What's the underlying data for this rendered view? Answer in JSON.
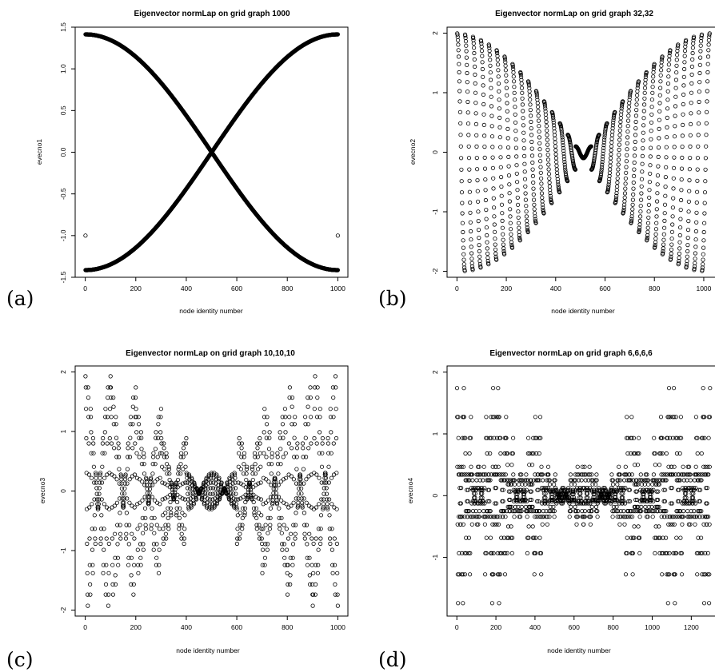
{
  "panel_labels": [
    "(a)",
    "(b)",
    "(c)",
    "(d)"
  ],
  "chart_data": [
    {
      "type": "scatter",
      "title": "Eigenvector normLap on grid graph 1000",
      "xlabel": "node identity number",
      "ylabel": "evecno1",
      "xlim": [
        -40,
        1040
      ],
      "ylim": [
        -1.5,
        1.5
      ],
      "xticks": [
        "0",
        "200",
        "400",
        "600",
        "800",
        "1000"
      ],
      "xtick_values": [
        0,
        200,
        400,
        600,
        800,
        1000
      ],
      "yticks": [
        "-1.5",
        "-1.0",
        "-0.5",
        "0.0",
        "0.5",
        "1.0",
        "1.5"
      ],
      "ytick_values": [
        -1.5,
        -1.0,
        -0.5,
        0.0,
        0.5,
        1.0,
        1.5
      ],
      "series": [
        {
          "x_range": [
            1,
            1000
          ],
          "step": 1,
          "formula": "1.414*cos(pi*(i-0.5)/1000)"
        },
        {
          "x_range": [
            1,
            1000
          ],
          "step": 1,
          "formula": "-1.414*cos(pi*(i-0.5)/1000)"
        },
        {
          "x": [
            1,
            1000
          ],
          "y": [
            -1.0,
            -1.0
          ]
        }
      ]
    },
    {
      "type": "scatter",
      "title": "Eigenvector normLap  on grid graph 32,32",
      "xlabel": "node identity number",
      "ylabel": "evecno2",
      "xlim": [
        -40,
        1065
      ],
      "ylim": [
        -2.1,
        2.1
      ],
      "xticks": [
        "0",
        "200",
        "400",
        "600",
        "800",
        "1000"
      ],
      "xtick_values": [
        0,
        200,
        400,
        600,
        800,
        1000
      ],
      "yticks": [
        "-2",
        "-1",
        "0",
        "1",
        "2"
      ],
      "ytick_values": [
        -2,
        -1,
        0,
        1,
        2
      ],
      "structure": {
        "n": 1024,
        "grid": [
          32,
          32
        ],
        "amplitude": 2.0
      }
    },
    {
      "type": "scatter",
      "title": "Eigenvector normLap  on grid graph 10,10,10",
      "xlabel": "node identity number",
      "ylabel": "evecno3",
      "xlim": [
        -40,
        1040
      ],
      "ylim": [
        -2.1,
        2.1
      ],
      "xticks": [
        "0",
        "200",
        "400",
        "600",
        "800",
        "1000"
      ],
      "xtick_values": [
        0,
        200,
        400,
        600,
        800,
        1000
      ],
      "yticks": [
        "-2",
        "-1",
        "0",
        "1",
        "2"
      ],
      "ytick_values": [
        -2,
        -1,
        0,
        1,
        2
      ],
      "structure": {
        "n": 1000,
        "grid": [
          10,
          10,
          10
        ],
        "levels": [
          1.88,
          1.6,
          1.34,
          1.08,
          0.82,
          0.58,
          0.34,
          0.2,
          0.05,
          -0.05,
          -0.2,
          -0.34,
          -0.58,
          -0.82,
          -1.08,
          -1.34,
          -1.6,
          -1.88
        ]
      }
    },
    {
      "type": "scatter",
      "title": "Eigenvector normLap  on grid graph 6,6,6,6",
      "xlabel": "node identity number",
      "ylabel": "evecno4",
      "xlim": [
        -50,
        1346
      ],
      "ylim": [
        -1.95,
        2.1
      ],
      "xticks": [
        "0",
        "200",
        "400",
        "600",
        "800",
        "1000",
        "1200"
      ],
      "xtick_values": [
        0,
        200,
        400,
        600,
        800,
        1000,
        1200
      ],
      "yticks": [
        "-1",
        "0",
        "1",
        "2"
      ],
      "ytick_values": [
        -1,
        0,
        1,
        2
      ],
      "structure": {
        "n": 1296,
        "grid": [
          6,
          6,
          6,
          6
        ],
        "levels": [
          2.0,
          1.62,
          1.22,
          0.68,
          0.52,
          0.22,
          0.05,
          -0.05,
          -0.22,
          -0.45,
          -0.62,
          -1.42,
          -1.82
        ]
      }
    }
  ]
}
